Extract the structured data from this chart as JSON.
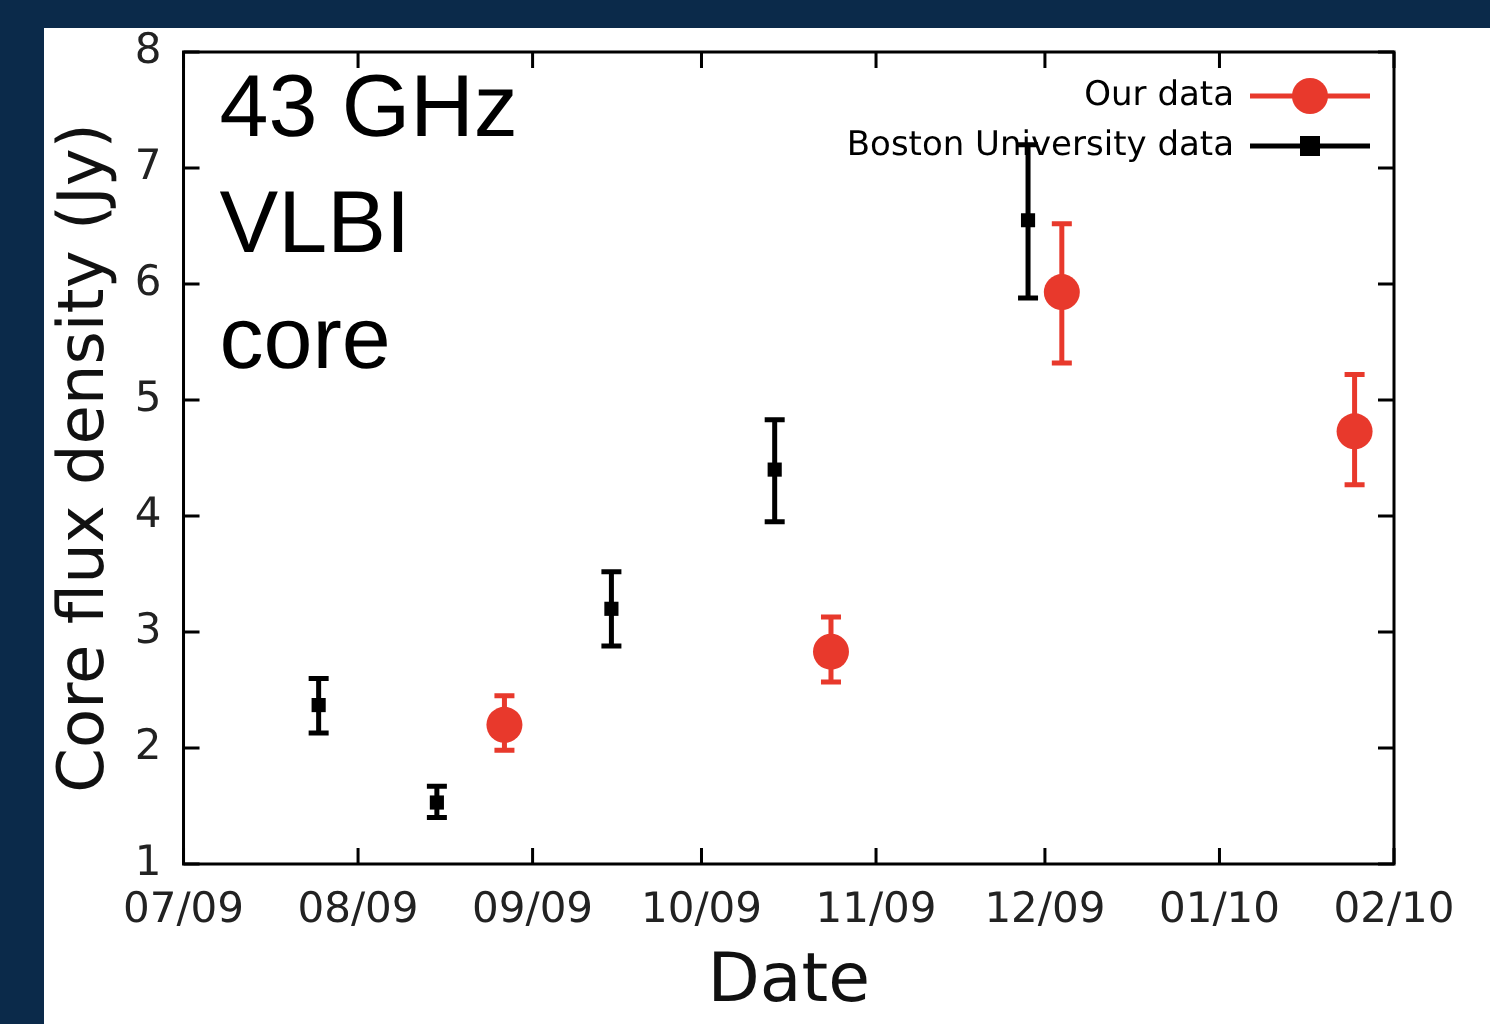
{
  "chart_data": {
    "type": "scatter",
    "xlabel": "Date",
    "ylabel": "Core flux density (Jy)",
    "annotations": [
      "43 GHz\nVLBI\ncore"
    ],
    "xlim": [
      "2009-07-01",
      "2010-02-01"
    ],
    "xticks": [
      {
        "value": "2009-07-01",
        "label": "07/09"
      },
      {
        "value": "2009-08-01",
        "label": "08/09"
      },
      {
        "value": "2009-09-01",
        "label": "09/09"
      },
      {
        "value": "2009-10-01",
        "label": "10/09"
      },
      {
        "value": "2009-11-01",
        "label": "11/09"
      },
      {
        "value": "2009-12-01",
        "label": "12/09"
      },
      {
        "value": "2010-01-01",
        "label": "01/10"
      },
      {
        "value": "2010-02-01",
        "label": "02/10"
      }
    ],
    "ylim": [
      1,
      8
    ],
    "yticks": [
      1,
      2,
      3,
      4,
      5,
      6,
      7,
      8
    ],
    "grid": false,
    "legend": "top right",
    "series": [
      {
        "name": "Our data",
        "color": "#e8392c",
        "marker": "circle",
        "x": [
          "2009-08-27",
          "2009-10-24",
          "2009-12-04",
          "2010-01-25"
        ],
        "values": [
          2.2,
          2.83,
          5.93,
          4.73
        ],
        "errors": [
          [
            1.98,
            2.45
          ],
          [
            2.57,
            3.13
          ],
          [
            5.32,
            6.52
          ],
          [
            4.27,
            5.22
          ]
        ]
      },
      {
        "name": "Boston University data",
        "color": "#000000",
        "marker": "square",
        "x": [
          "2009-07-25",
          "2009-08-15",
          "2009-09-15",
          "2009-10-14",
          "2009-11-28"
        ],
        "values": [
          2.37,
          1.53,
          3.2,
          4.4,
          6.55
        ],
        "errors": [
          [
            2.13,
            2.6
          ],
          [
            1.4,
            1.67
          ],
          [
            2.88,
            3.52
          ],
          [
            3.95,
            4.83
          ],
          [
            5.88,
            7.2
          ]
        ]
      }
    ]
  }
}
